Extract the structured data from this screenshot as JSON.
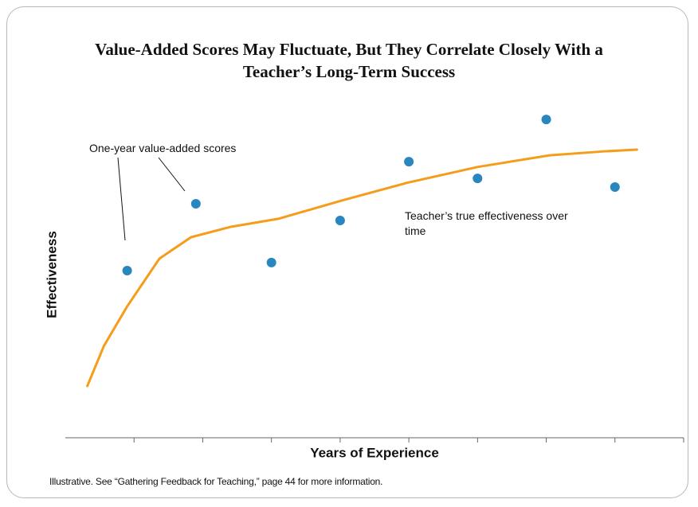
{
  "chart_data": {
    "type": "scatter",
    "title": "Value-Added Scores May Fluctuate, But They Correlate Closely With a Teacher’s Long-Term Success",
    "x_label": "Years of Experience",
    "y_label": "Effectiveness",
    "footnote": "Illustrative. See “Gathering Feedback for Teaching,” page 44 for more information.",
    "xlim": [
      0,
      9
    ],
    "ylim": [
      0,
      100
    ],
    "xticks": [
      1,
      2,
      3,
      4,
      5,
      6,
      7,
      8,
      9
    ],
    "series": [
      {
        "name": "One-year value-added scores",
        "type": "scatter",
        "color": "#2a86bf",
        "x": [
          0.9,
          1.9,
          3,
          4,
          5,
          6,
          7,
          8
        ],
        "values": [
          50,
          70,
          52.4,
          65,
          82.6,
          77.6,
          95.2,
          75
        ]
      },
      {
        "name": "Teacher’s true effectiveness over time",
        "type": "line",
        "color": "#f59d1b",
        "x": [
          0.32,
          0.56,
          0.9,
          1.37,
          1.83,
          2.41,
          3.1,
          4.03,
          4.96,
          6,
          7.05,
          7.86,
          8.32
        ],
        "values": [
          15.5,
          27.4,
          39.3,
          53.6,
          60,
          63.1,
          65.5,
          71,
          76.2,
          81,
          84.5,
          85.7,
          86.2
        ]
      }
    ]
  }
}
